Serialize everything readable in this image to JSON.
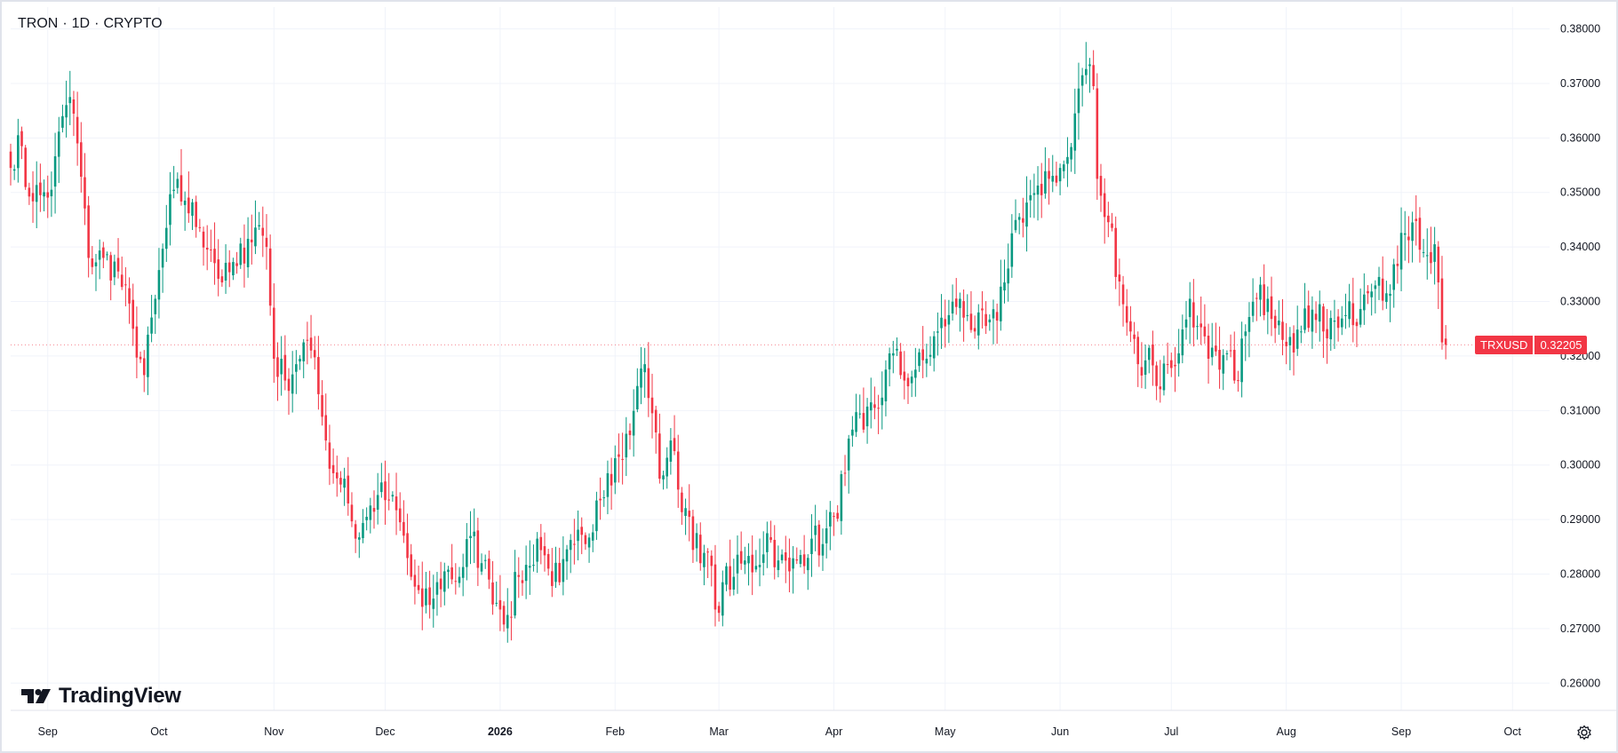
{
  "header": {
    "symbol": "TRON",
    "interval": "1D",
    "exchange": "CRYPTO",
    "separator": "·"
  },
  "logo": {
    "text": "TradingView",
    "icon": "tradingview-logo-icon"
  },
  "price_label": {
    "symbol": "TRXUSD",
    "value": "0.32205"
  },
  "settings": {
    "icon": "gear-icon"
  },
  "colors": {
    "up": "#089981",
    "down": "#f23645",
    "grid": "#f0f3fa",
    "axis_text": "#131722",
    "border": "#e0e3eb"
  },
  "chart_data": {
    "type": "candlestick",
    "title": "TRON · 1D · CRYPTO",
    "ylim": [
      0.255,
      0.384
    ],
    "y_ticks": [
      "0.26000",
      "0.27000",
      "0.28000",
      "0.29000",
      "0.30000",
      "0.31000",
      "0.32000",
      "0.33000",
      "0.34000",
      "0.35000",
      "0.36000",
      "0.37000",
      "0.38000"
    ],
    "x_range": [
      "2025-08-22",
      "2026-10-11"
    ],
    "x_ticks": [
      {
        "date": "2025-09-01",
        "label": "Sep",
        "bold": false
      },
      {
        "date": "2025-10-01",
        "label": "Oct",
        "bold": false
      },
      {
        "date": "2025-11-01",
        "label": "Nov",
        "bold": false
      },
      {
        "date": "2025-12-01",
        "label": "Dec",
        "bold": false
      },
      {
        "date": "2026-01-01",
        "label": "2026",
        "bold": true
      },
      {
        "date": "2026-02-01",
        "label": "Feb",
        "bold": false
      },
      {
        "date": "2026-03-01",
        "label": "Mar",
        "bold": false
      },
      {
        "date": "2026-04-01",
        "label": "Apr",
        "bold": false
      },
      {
        "date": "2026-05-01",
        "label": "May",
        "bold": false
      },
      {
        "date": "2026-06-01",
        "label": "Jun",
        "bold": false
      },
      {
        "date": "2026-07-01",
        "label": "Jul",
        "bold": false
      },
      {
        "date": "2026-08-01",
        "label": "Aug",
        "bold": false
      },
      {
        "date": "2026-09-01",
        "label": "Sep",
        "bold": false
      },
      {
        "date": "2026-10-01",
        "label": "Oct",
        "bold": false
      }
    ],
    "grid": true,
    "last_price": 0.32205,
    "series_start": "2025-08-22",
    "close_anchors": [
      [
        "2025-08-22",
        0.3545
      ],
      [
        "2025-08-24",
        0.3605
      ],
      [
        "2025-08-26",
        0.351
      ],
      [
        "2025-08-30",
        0.3495
      ],
      [
        "2025-09-02",
        0.3505
      ],
      [
        "2025-09-05",
        0.364
      ],
      [
        "2025-09-07",
        0.3675
      ],
      [
        "2025-09-09",
        0.359
      ],
      [
        "2025-09-12",
        0.338
      ],
      [
        "2025-09-16",
        0.338
      ],
      [
        "2025-09-20",
        0.3355
      ],
      [
        "2025-09-24",
        0.325
      ],
      [
        "2025-09-27",
        0.3165
      ],
      [
        "2025-09-30",
        0.3305
      ],
      [
        "2025-10-03",
        0.3435
      ],
      [
        "2025-10-05",
        0.3505
      ],
      [
        "2025-10-08",
        0.3485
      ],
      [
        "2025-10-12",
        0.3435
      ],
      [
        "2025-10-15",
        0.3395
      ],
      [
        "2025-10-18",
        0.3335
      ],
      [
        "2025-10-22",
        0.3365
      ],
      [
        "2025-10-25",
        0.3415
      ],
      [
        "2025-10-28",
        0.344
      ],
      [
        "2025-10-30",
        0.34
      ],
      [
        "2025-11-01",
        0.3195
      ],
      [
        "2025-11-04",
        0.3155
      ],
      [
        "2025-11-07",
        0.3185
      ],
      [
        "2025-11-09",
        0.3225
      ],
      [
        "2025-11-11",
        0.321
      ],
      [
        "2025-11-13",
        0.313
      ],
      [
        "2025-11-15",
        0.3045
      ],
      [
        "2025-11-17",
        0.2985
      ],
      [
        "2025-11-20",
        0.2975
      ],
      [
        "2025-11-23",
        0.2865
      ],
      [
        "2025-11-26",
        0.2905
      ],
      [
        "2025-11-29",
        0.2945
      ],
      [
        "2025-12-02",
        0.2935
      ],
      [
        "2025-12-05",
        0.2895
      ],
      [
        "2025-12-08",
        0.2795
      ],
      [
        "2025-12-11",
        0.274
      ],
      [
        "2025-12-14",
        0.2755
      ],
      [
        "2025-12-17",
        0.2805
      ],
      [
        "2025-12-21",
        0.2795
      ],
      [
        "2025-12-24",
        0.287
      ],
      [
        "2025-12-27",
        0.282
      ],
      [
        "2025-12-29",
        0.279
      ],
      [
        "2026-01-01",
        0.2735
      ],
      [
        "2026-01-03",
        0.2725
      ],
      [
        "2026-01-06",
        0.2795
      ],
      [
        "2026-01-09",
        0.2815
      ],
      [
        "2026-01-11",
        0.2865
      ],
      [
        "2026-01-14",
        0.281
      ],
      [
        "2026-01-17",
        0.2785
      ],
      [
        "2026-01-21",
        0.2855
      ],
      [
        "2026-01-24",
        0.2855
      ],
      [
        "2026-01-27",
        0.2935
      ],
      [
        "2026-01-30",
        0.2985
      ],
      [
        "2026-02-02",
        0.3015
      ],
      [
        "2026-02-05",
        0.3055
      ],
      [
        "2026-02-07",
        0.3145
      ],
      [
        "2026-02-09",
        0.3185
      ],
      [
        "2026-02-11",
        0.3095
      ],
      [
        "2026-02-13",
        0.2975
      ],
      [
        "2026-02-16",
        0.3045
      ],
      [
        "2026-02-18",
        0.2955
      ],
      [
        "2026-02-21",
        0.2905
      ],
      [
        "2026-02-24",
        0.282
      ],
      [
        "2026-02-26",
        0.284
      ],
      [
        "2026-02-28",
        0.2735
      ],
      [
        "2026-03-02",
        0.2785
      ],
      [
        "2026-03-05",
        0.2795
      ],
      [
        "2026-03-08",
        0.2825
      ],
      [
        "2026-03-11",
        0.2815
      ],
      [
        "2026-03-14",
        0.2875
      ],
      [
        "2026-03-17",
        0.2825
      ],
      [
        "2026-03-20",
        0.2805
      ],
      [
        "2026-03-23",
        0.2835
      ],
      [
        "2026-03-26",
        0.2865
      ],
      [
        "2026-03-29",
        0.2855
      ],
      [
        "2026-04-01",
        0.2905
      ],
      [
        "2026-04-04",
        0.2985
      ],
      [
        "2026-04-06",
        0.3065
      ],
      [
        "2026-04-09",
        0.3065
      ],
      [
        "2026-04-11",
        0.3115
      ],
      [
        "2026-04-13",
        0.3105
      ],
      [
        "2026-04-15",
        0.3175
      ],
      [
        "2026-04-17",
        0.3205
      ],
      [
        "2026-04-20",
        0.3155
      ],
      [
        "2026-04-23",
        0.3175
      ],
      [
        "2026-04-26",
        0.3195
      ],
      [
        "2026-04-29",
        0.3245
      ],
      [
        "2026-05-02",
        0.3275
      ],
      [
        "2026-05-05",
        0.3305
      ],
      [
        "2026-05-07",
        0.3275
      ],
      [
        "2026-05-09",
        0.3245
      ],
      [
        "2026-05-12",
        0.3255
      ],
      [
        "2026-05-15",
        0.3265
      ],
      [
        "2026-05-17",
        0.3335
      ],
      [
        "2026-05-19",
        0.3425
      ],
      [
        "2026-05-21",
        0.3455
      ],
      [
        "2026-05-24",
        0.3495
      ],
      [
        "2026-05-27",
        0.3495
      ],
      [
        "2026-05-29",
        0.3525
      ],
      [
        "2026-06-01",
        0.3545
      ],
      [
        "2026-06-03",
        0.3565
      ],
      [
        "2026-06-05",
        0.3645
      ],
      [
        "2026-06-07",
        0.3715
      ],
      [
        "2026-06-09",
        0.3735
      ],
      [
        "2026-06-10",
        0.3695
      ],
      [
        "2026-06-11",
        0.3525
      ],
      [
        "2026-06-13",
        0.3455
      ],
      [
        "2026-06-15",
        0.3435
      ],
      [
        "2026-06-16",
        0.3345
      ],
      [
        "2026-06-18",
        0.3295
      ],
      [
        "2026-06-20",
        0.3245
      ],
      [
        "2026-06-22",
        0.3185
      ],
      [
        "2026-06-25",
        0.3215
      ],
      [
        "2026-06-27",
        0.3145
      ],
      [
        "2026-06-30",
        0.3185
      ],
      [
        "2026-07-03",
        0.3205
      ],
      [
        "2026-07-06",
        0.3305
      ],
      [
        "2026-07-08",
        0.3255
      ],
      [
        "2026-07-11",
        0.3195
      ],
      [
        "2026-07-14",
        0.3175
      ],
      [
        "2026-07-16",
        0.3205
      ],
      [
        "2026-07-18",
        0.3155
      ],
      [
        "2026-07-21",
        0.3245
      ],
      [
        "2026-07-24",
        0.3305
      ],
      [
        "2026-07-27",
        0.3305
      ],
      [
        "2026-07-30",
        0.3265
      ],
      [
        "2026-08-02",
        0.3235
      ],
      [
        "2026-08-05",
        0.3245
      ],
      [
        "2026-08-08",
        0.3285
      ],
      [
        "2026-08-10",
        0.3295
      ],
      [
        "2026-08-11",
        0.3245
      ],
      [
        "2026-08-14",
        0.3265
      ],
      [
        "2026-08-17",
        0.3275
      ],
      [
        "2026-08-20",
        0.3255
      ],
      [
        "2026-08-23",
        0.3315
      ],
      [
        "2026-08-26",
        0.3345
      ],
      [
        "2026-08-28",
        0.3315
      ],
      [
        "2026-08-31",
        0.3365
      ],
      [
        "2026-09-02",
        0.3425
      ],
      [
        "2026-09-04",
        0.3445
      ],
      [
        "2026-09-06",
        0.3395
      ],
      [
        "2026-09-08",
        0.3385
      ],
      [
        "2026-09-10",
        0.3405
      ],
      [
        "2026-09-11",
        0.3335
      ],
      [
        "2026-09-12",
        0.3225
      ],
      [
        "2026-09-13",
        0.32205
      ]
    ]
  }
}
